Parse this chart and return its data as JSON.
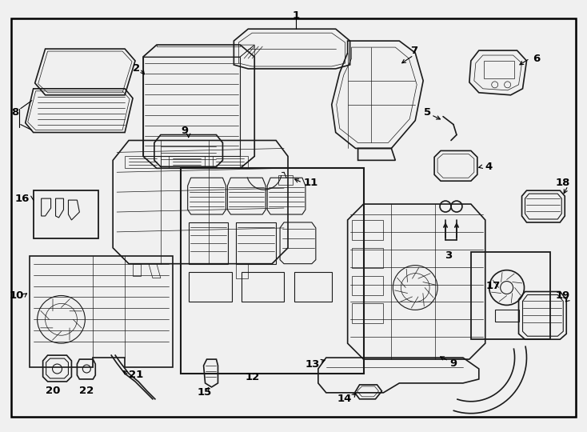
{
  "bg_color": "#f0f0f0",
  "border_color": "#000000",
  "line_color": "#1a1a1a",
  "fig_width": 7.34,
  "fig_height": 5.4,
  "dpi": 100
}
